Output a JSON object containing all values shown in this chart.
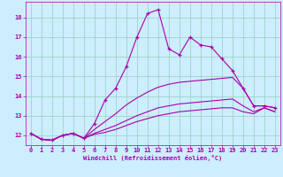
{
  "xlabel": "Windchill (Refroidissement éolien,°C)",
  "bg_color": "#cceeff",
  "line_color": "#aa00aa",
  "grid_color": "#99ccbb",
  "x_ticks": [
    0,
    1,
    2,
    3,
    4,
    5,
    6,
    7,
    8,
    9,
    10,
    11,
    12,
    13,
    14,
    15,
    16,
    17,
    18,
    19,
    20,
    21,
    22,
    23
  ],
  "y_ticks": [
    12,
    13,
    14,
    15,
    16,
    17,
    18
  ],
  "xlim": [
    -0.5,
    23.5
  ],
  "ylim": [
    11.5,
    18.8
  ],
  "series": [
    [
      12.1,
      11.8,
      11.75,
      12.0,
      12.1,
      11.85,
      12.6,
      13.8,
      14.4,
      15.5,
      17.0,
      18.2,
      18.4,
      16.4,
      16.1,
      17.0,
      16.6,
      16.5,
      15.9,
      15.3,
      14.4,
      13.5,
      13.5,
      13.4
    ],
    [
      12.1,
      11.8,
      11.75,
      12.0,
      12.1,
      11.85,
      12.3,
      12.7,
      13.1,
      13.55,
      13.9,
      14.2,
      14.45,
      14.6,
      14.7,
      14.75,
      14.8,
      14.85,
      14.9,
      14.95,
      14.4,
      13.5,
      13.5,
      13.4
    ],
    [
      12.1,
      11.8,
      11.75,
      12.0,
      12.1,
      11.85,
      12.1,
      12.3,
      12.5,
      12.75,
      13.0,
      13.2,
      13.4,
      13.5,
      13.6,
      13.65,
      13.7,
      13.75,
      13.8,
      13.85,
      13.5,
      13.2,
      13.4,
      13.2
    ],
    [
      12.1,
      11.8,
      11.75,
      12.0,
      12.1,
      11.85,
      12.05,
      12.15,
      12.3,
      12.5,
      12.7,
      12.85,
      13.0,
      13.1,
      13.2,
      13.25,
      13.3,
      13.35,
      13.4,
      13.4,
      13.2,
      13.1,
      13.4,
      13.2
    ]
  ],
  "xlabel_fontsize": 5.0,
  "tick_fontsize": 5.0
}
